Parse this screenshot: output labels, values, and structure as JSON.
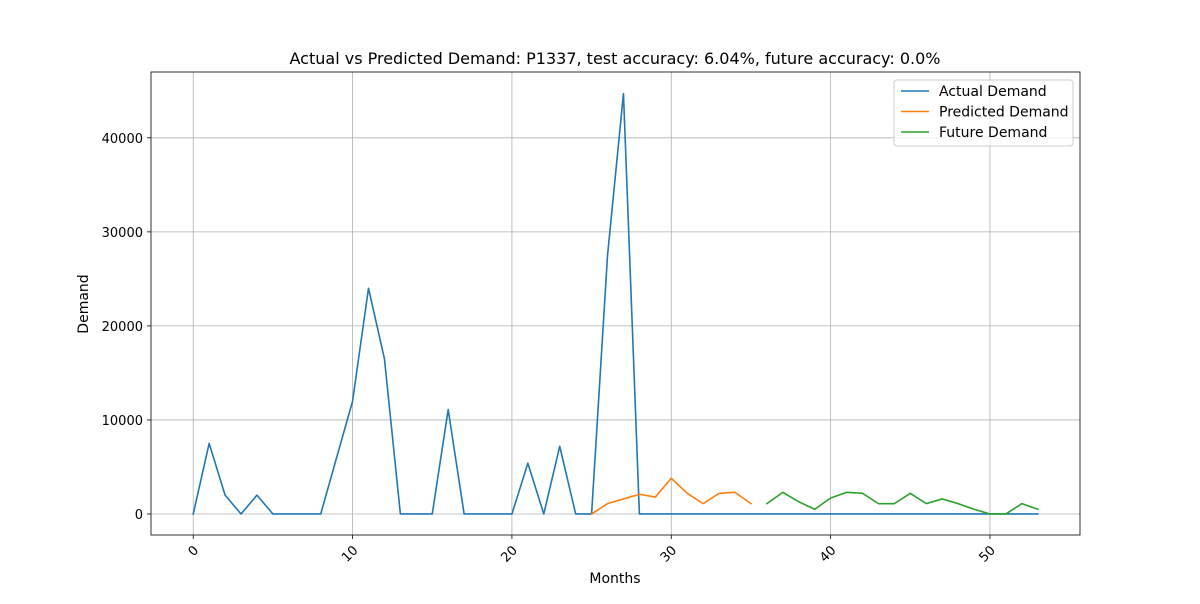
{
  "chart_data": {
    "type": "line",
    "title": "Actual vs Predicted Demand: P1337, test accuracy: 6.04%, future accuracy: 0.0%",
    "xlabel": "Months",
    "ylabel": "Demand",
    "xlim": [
      -2.65,
      55.65
    ],
    "ylim": [
      -2235,
      47000
    ],
    "x_ticks": [
      0,
      10,
      20,
      30,
      40,
      50
    ],
    "y_ticks": [
      0,
      10000,
      20000,
      30000,
      40000
    ],
    "x_tick_rotation": 45,
    "grid": true,
    "legend": "top-right",
    "series": [
      {
        "name": "Actual Demand",
        "color": "#1f77b4",
        "x": [
          0,
          1,
          2,
          3,
          4,
          5,
          6,
          7,
          8,
          9,
          10,
          11,
          12,
          13,
          14,
          15,
          16,
          17,
          18,
          19,
          20,
          21,
          22,
          23,
          24,
          25,
          26,
          27,
          28,
          29,
          30,
          31,
          32,
          33,
          34,
          35,
          36,
          37,
          38,
          39,
          40,
          41,
          42,
          43,
          44,
          45,
          46,
          47,
          48,
          49,
          50,
          51,
          52,
          53
        ],
        "y": [
          0,
          7500,
          2000,
          0,
          2000,
          0,
          0,
          0,
          0,
          6000,
          12000,
          24000,
          16500,
          0,
          0,
          0,
          11100,
          0,
          0,
          0,
          0,
          5400,
          0,
          7200,
          0,
          0,
          27500,
          44700,
          0,
          0,
          0,
          0,
          0,
          0,
          0,
          0,
          0,
          0,
          0,
          0,
          0,
          0,
          0,
          0,
          0,
          0,
          0,
          0,
          0,
          0,
          0,
          0,
          0,
          0
        ]
      },
      {
        "name": "Predicted Demand",
        "color": "#ff7f0e",
        "x": [
          25,
          26,
          27,
          28,
          29,
          30,
          31,
          32,
          33,
          34,
          35
        ],
        "y": [
          0,
          1100,
          1600,
          2100,
          1800,
          3800,
          2200,
          1100,
          2200,
          2300,
          1100
        ]
      },
      {
        "name": "Future Demand",
        "color": "#2ca02c",
        "x": [
          36,
          37,
          38,
          39,
          40,
          41,
          42,
          43,
          44,
          45,
          46,
          47,
          48,
          49,
          50,
          51,
          52,
          53
        ],
        "y": [
          1100,
          2300,
          1300,
          500,
          1700,
          2300,
          2200,
          1100,
          1100,
          2200,
          1100,
          1600,
          1100,
          500,
          0,
          0,
          1100,
          500
        ]
      }
    ]
  }
}
